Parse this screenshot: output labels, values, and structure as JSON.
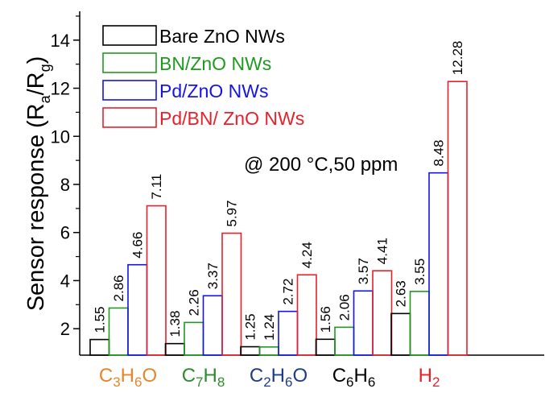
{
  "chart_data": {
    "type": "bar",
    "title": "",
    "annotation": "@ 200 °C,50 ppm",
    "ylabel": "Sensor response (Ra/Rg)",
    "ylabel_parts": {
      "main": "Sensor response (R",
      "sub1": "a",
      "mid": "/R",
      "sub2": "g",
      "end": ")"
    },
    "xlabel": "",
    "ylim": [
      0.9,
      15.2
    ],
    "yticks": [
      2,
      4,
      6,
      8,
      10,
      12,
      14
    ],
    "ytick_labels": [
      "2",
      "4",
      "6",
      "8",
      "10",
      "12",
      "14"
    ],
    "legend_position": "top-left",
    "categories": [
      {
        "main": "C3H6O",
        "parts": [
          "C",
          "3",
          "H",
          "6",
          "O"
        ],
        "color": "#E6862A"
      },
      {
        "main": "C7H8",
        "parts": [
          "C",
          "7",
          "H",
          "8"
        ],
        "color": "#2E8B2E"
      },
      {
        "main": "C2H6O",
        "parts": [
          "C",
          "2",
          "H",
          "6",
          "O"
        ],
        "color": "#1F3C88"
      },
      {
        "main": "C6H6",
        "parts": [
          "C",
          "6",
          "H",
          "6"
        ],
        "color": "#000000"
      },
      {
        "main": "H2",
        "parts": [
          "H",
          "2"
        ],
        "color": "#E8202A"
      }
    ],
    "series": [
      {
        "name": "Bare ZnO NWs",
        "color": "#000000",
        "values": [
          1.55,
          1.38,
          1.25,
          1.56,
          2.63
        ],
        "labels": [
          "1.55",
          "1.38",
          "1.25",
          "1.56",
          "2.63"
        ]
      },
      {
        "name": "BN/ZnO NWs",
        "color": "#1E9A1E",
        "values": [
          2.86,
          2.26,
          1.24,
          2.06,
          3.55
        ],
        "labels": [
          "2.86",
          "2.26",
          "1.24",
          "2.06",
          "3.55"
        ]
      },
      {
        "name": "Pd/ZnO NWs",
        "color": "#1414E6",
        "values": [
          4.66,
          3.37,
          2.72,
          3.57,
          8.48
        ],
        "labels": [
          "4.66",
          "3.37",
          "2.72",
          "3.57",
          "8.48"
        ]
      },
      {
        "name": "Pd/BN/ ZnO NWs",
        "color": "#E8202A",
        "values": [
          7.11,
          5.97,
          4.24,
          4.41,
          12.28
        ],
        "labels": [
          "7.11",
          "5.97",
          "4.24",
          "4.41",
          "12.28"
        ]
      }
    ]
  }
}
